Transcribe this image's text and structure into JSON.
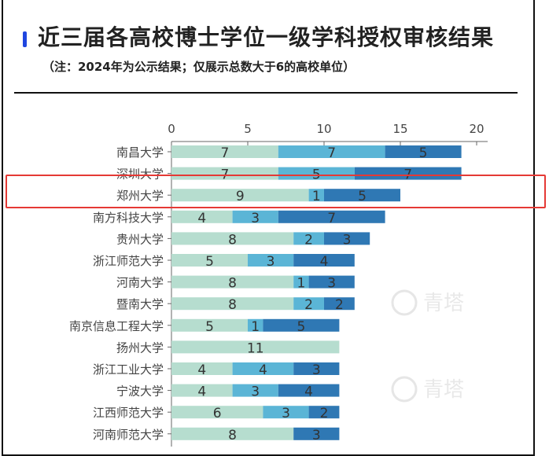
{
  "header": {
    "title": "近三届各高校博士学位一级学科授权审核结果",
    "subtitle": "（注：2024年为公示结果；仅展示总数大于6的高校单位）",
    "accent_color": "#1f46e0"
  },
  "watermark": "青塔",
  "highlight": {
    "category": "郑州大学",
    "color": "#e53935"
  },
  "chart_data": {
    "type": "bar",
    "orientation": "horizontal",
    "stacked": true,
    "title": "近三届各高校博士学位一级学科授权审核结果",
    "xlim": [
      0,
      20
    ],
    "xticks": [
      0,
      5,
      10,
      15,
      20
    ],
    "axis_position": "top",
    "grid": false,
    "legend": "none",
    "categories": [
      "南昌大学",
      "深圳大学",
      "郑州大学",
      "南方科技大学",
      "贵州大学",
      "浙江师范大学",
      "河南大学",
      "暨南大学",
      "南京信息工程大学",
      "扬州大学",
      "浙江工业大学",
      "宁波大学",
      "江西师范大学",
      "河南师范大学"
    ],
    "series": [
      {
        "color": "#b6ddcf",
        "values": [
          7,
          7,
          9,
          4,
          8,
          5,
          8,
          8,
          5,
          11,
          4,
          4,
          6,
          8
        ]
      },
      {
        "color": "#5bb5d6",
        "values": [
          7,
          5,
          1,
          3,
          2,
          3,
          1,
          2,
          1,
          0,
          4,
          3,
          3,
          0
        ]
      },
      {
        "color": "#2f78b4",
        "values": [
          5,
          7,
          5,
          7,
          3,
          4,
          3,
          2,
          5,
          0,
          3,
          4,
          2,
          3
        ]
      }
    ]
  }
}
